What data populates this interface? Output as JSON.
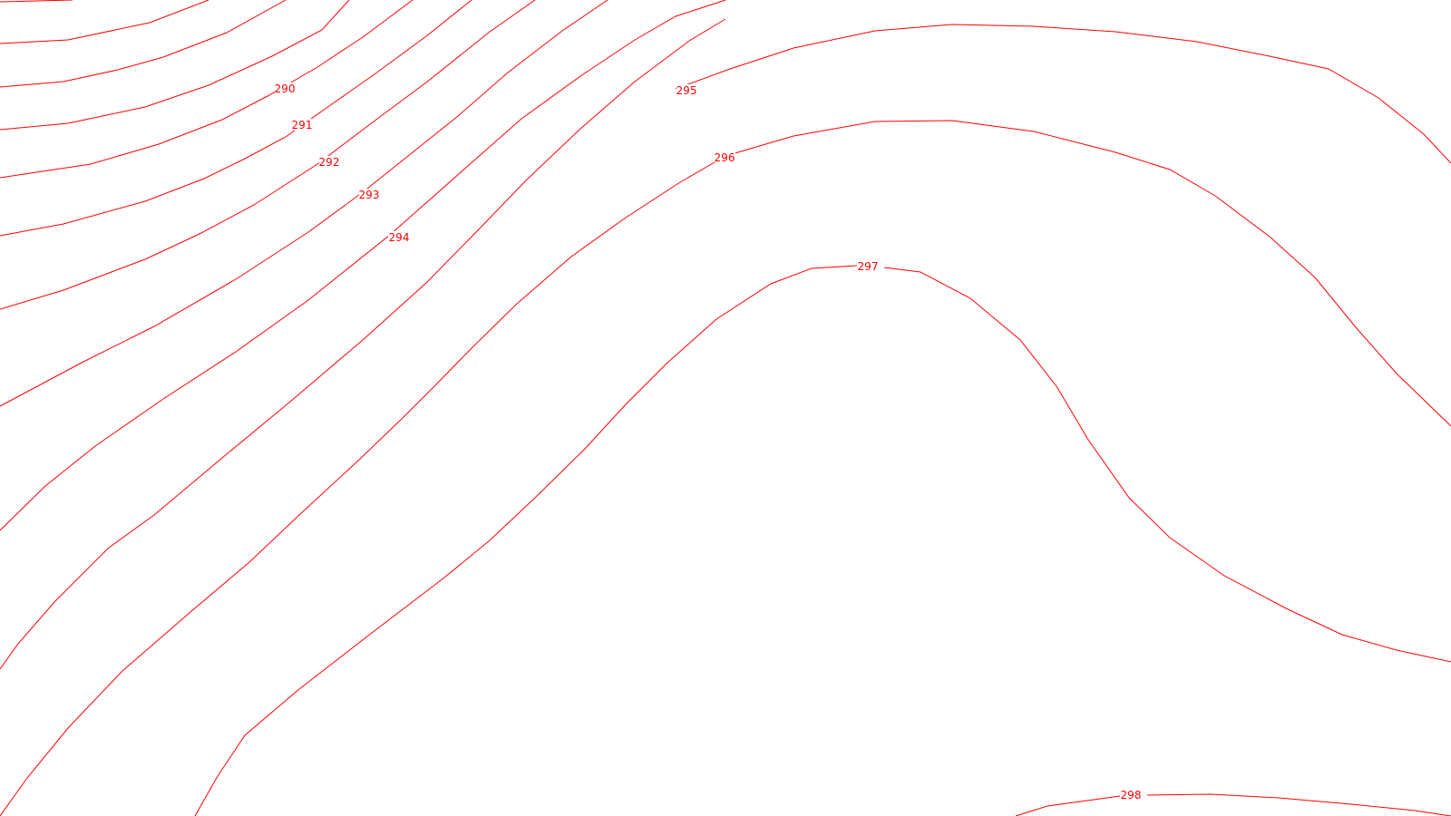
{
  "map": {
    "type": "contour",
    "line_color": "#ff0000",
    "background": "#ffffff",
    "contour_labels": [
      "290",
      "291",
      "292",
      "293",
      "294",
      "295",
      "296",
      "297",
      "298"
    ]
  }
}
